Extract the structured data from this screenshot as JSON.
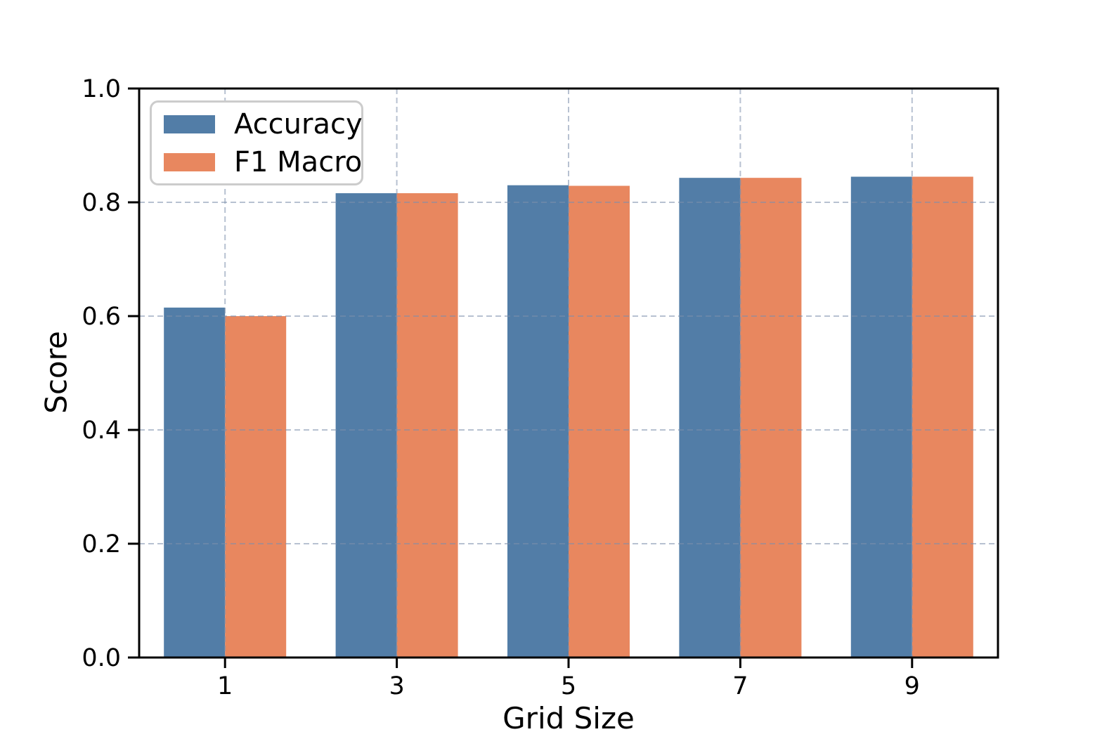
{
  "chart_data": {
    "type": "bar",
    "title": "",
    "xlabel": "Grid Size",
    "ylabel": "Score",
    "categories": [
      "1",
      "3",
      "5",
      "7",
      "9"
    ],
    "series": [
      {
        "name": "Accuracy",
        "color": "#527da7",
        "values": [
          0.615,
          0.816,
          0.83,
          0.843,
          0.845
        ]
      },
      {
        "name": "F1 Macro",
        "color": "#e8875f",
        "values": [
          0.6,
          0.816,
          0.829,
          0.843,
          0.845
        ]
      }
    ],
    "ylim": [
      0.0,
      1.0
    ],
    "yticks": [
      0.0,
      0.2,
      0.4,
      0.6,
      0.8,
      1.0
    ],
    "ytick_labels": [
      "0.0",
      "0.2",
      "0.4",
      "0.6",
      "0.8",
      "1.0"
    ],
    "xtick_labels": [
      "1",
      "3",
      "5",
      "7",
      "9"
    ],
    "grid": {
      "style": "dashed",
      "axes": "both",
      "color": "#7d90ac",
      "drawn_above_bars": true
    },
    "legend": {
      "position": "upper left"
    },
    "axis_color": "#000000",
    "background_color": "#ffffff"
  }
}
